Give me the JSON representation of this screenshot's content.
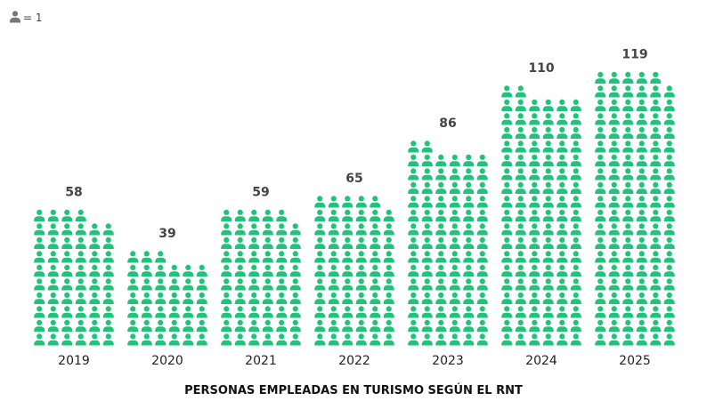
{
  "chart_data": {
    "type": "pictogram",
    "title": "PERSONAS EMPLEADAS EN TURISMO SEGÚN EL RNT",
    "unit_label": "= 1",
    "categories": [
      "2019",
      "2020",
      "2021",
      "2022",
      "2023",
      "2024",
      "2025"
    ],
    "values": [
      58,
      39,
      59,
      65,
      86,
      110,
      119
    ],
    "color": "#1fc47a",
    "unit_icon_color": "#777777"
  }
}
